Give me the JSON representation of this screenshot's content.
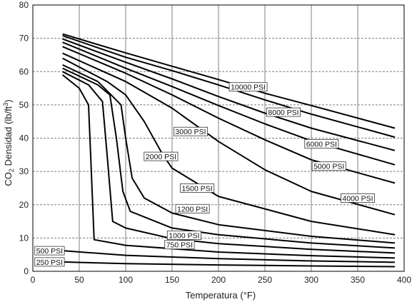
{
  "chart_data": {
    "type": "line",
    "xlabel": "Temperatura (°F)",
    "ylabel_parts": [
      "CO",
      "2",
      " Densidad (lb/ft",
      "3",
      ")"
    ],
    "xlim": [
      0,
      400
    ],
    "ylim": [
      0,
      80
    ],
    "x_ticks": [
      "0",
      "50",
      "100",
      "150",
      "200",
      "250",
      "300",
      "350",
      "400"
    ],
    "y_ticks": [
      "0",
      "10",
      "20",
      "30",
      "40",
      "50",
      "60",
      "70",
      "80"
    ],
    "grid": true,
    "series": [
      {
        "name": "250 PSI",
        "label_at": [
          18,
          2.8
        ],
        "x": [
          32,
          100,
          200,
          300,
          390
        ],
        "y": [
          2.8,
          2.3,
          1.9,
          1.6,
          1.4
        ]
      },
      {
        "name": "500 PSI",
        "label_at": [
          18,
          6.2
        ],
        "x": [
          32,
          100,
          200,
          300,
          390
        ],
        "y": [
          6.2,
          4.8,
          3.8,
          3.1,
          2.7
        ]
      },
      {
        "name": "750 PSI",
        "label_at": [
          158,
          8.0
        ],
        "x": [
          32,
          50,
          60,
          63,
          66,
          100,
          200,
          300,
          390
        ],
        "y": [
          59,
          55,
          50,
          30,
          9.5,
          7.8,
          5.8,
          4.7,
          4.0
        ]
      },
      {
        "name": "1000 PSI",
        "label_at": [
          163,
          10.8
        ],
        "x": [
          32,
          60,
          75,
          80,
          86,
          100,
          150,
          200,
          300,
          390
        ],
        "y": [
          60,
          56,
          51,
          35,
          15,
          13,
          9.8,
          8.3,
          6.6,
          5.5
        ]
      },
      {
        "name": "1200 PSI",
        "label_at": [
          172,
          18.8
        ],
        "x": [
          32,
          70,
          83,
          90,
          97,
          105,
          150,
          200,
          300,
          390
        ],
        "y": [
          61,
          56,
          53,
          40,
          24,
          18,
          13,
          11,
          8.5,
          7.0
        ]
      },
      {
        "name": "1500 PSI",
        "label_at": [
          177,
          25.0
        ],
        "x": [
          32,
          70,
          95,
          100,
          107,
          120,
          150,
          200,
          300,
          390
        ],
        "y": [
          62,
          57,
          50,
          40,
          28,
          22,
          17.5,
          14,
          10.5,
          8.5
        ]
      },
      {
        "name": "2000 PSI",
        "label_at": [
          138,
          34.5
        ],
        "x": [
          32,
          80,
          100,
          120,
          140,
          150,
          200,
          300,
          390
        ],
        "y": [
          64,
          57,
          53,
          45,
          35,
          31,
          22.5,
          15,
          11
        ]
      },
      {
        "name": "3000 PSI",
        "label_at": [
          170,
          42.0
        ],
        "x": [
          32,
          100,
          150,
          200,
          250,
          300,
          390
        ],
        "y": [
          65.5,
          57,
          49,
          39,
          30.5,
          24,
          17
        ]
      },
      {
        "name": "4000 PSI",
        "label_at": [
          350,
          22.0
        ],
        "x": [
          32,
          100,
          150,
          200,
          250,
          300,
          390
        ],
        "y": [
          67.5,
          59.5,
          53,
          46,
          39.5,
          33.5,
          26.5
        ]
      },
      {
        "name": "5000 PSI",
        "label_at": [
          319,
          31.6
        ],
        "x": [
          32,
          100,
          150,
          200,
          250,
          300,
          390
        ],
        "y": [
          68.8,
          61,
          55.5,
          49.8,
          44.3,
          39.2,
          32
        ]
      },
      {
        "name": "6000 PSI",
        "label_at": [
          311,
          38.3
        ],
        "x": [
          32,
          100,
          150,
          200,
          250,
          300,
          390
        ],
        "y": [
          69.8,
          62.8,
          57.8,
          52.5,
          47.5,
          43,
          36.3
        ]
      },
      {
        "name": "8000 PSI",
        "label_at": [
          270,
          47.8
        ],
        "x": [
          32,
          100,
          150,
          200,
          250,
          300,
          390
        ],
        "y": [
          70.8,
          64.3,
          60.3,
          56,
          51.5,
          47.2,
          40.3
        ]
      },
      {
        "name": "10000 PSI",
        "label_at": [
          232,
          55.4
        ],
        "x": [
          32,
          100,
          150,
          200,
          250,
          300,
          390
        ],
        "y": [
          71.3,
          65.6,
          61.6,
          57.6,
          53.5,
          49.8,
          43
        ]
      }
    ]
  }
}
